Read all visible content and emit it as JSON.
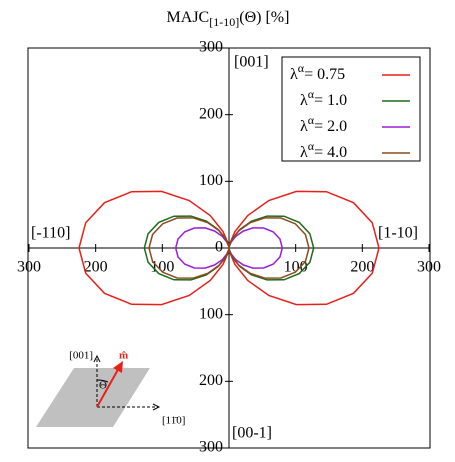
{
  "chart_data": {
    "type": "polar",
    "title": "MAJC",
    "title_subscript": "[1-10]",
    "title_suffix": "(Θ) [%]",
    "direction_labels": {
      "top": "[001]",
      "right": "[1-10]",
      "left": "[-110]",
      "bottom": "[00-1]"
    },
    "rlim": [
      0,
      300
    ],
    "rticks": [
      0,
      100,
      200,
      300
    ],
    "theta": [
      0,
      10,
      20,
      30,
      40,
      50,
      60,
      70,
      80,
      90,
      100,
      110,
      120,
      130,
      140,
      150,
      160,
      170,
      180,
      190,
      200,
      210,
      220,
      230,
      240,
      250,
      260,
      270,
      280,
      290,
      300,
      310,
      320,
      330,
      340,
      350,
      360
    ],
    "legend_label": {
      "base": "λ",
      "sup": "α",
      "sep": "= "
    },
    "legend_position": "upper right",
    "series": [
      {
        "name": "0.75",
        "color": "#e8201a",
        "values": [
          0,
          6.8,
          26.3,
          56.3,
          93.0,
          132.0,
          168.8,
          198.7,
          218.2,
          225,
          218.2,
          198.7,
          168.8,
          132.0,
          93.0,
          56.3,
          26.3,
          6.8,
          0,
          6.8,
          26.3,
          56.3,
          93.0,
          132.0,
          168.8,
          198.7,
          218.2,
          225,
          218.2,
          198.7,
          168.8,
          132.0,
          93.0,
          56.3,
          26.3,
          6.8,
          0
        ]
      },
      {
        "name": "1.0",
        "color": "#1d6b1d",
        "values": [
          0,
          3.8,
          14.9,
          31.8,
          52.5,
          74.5,
          95.3,
          112.1,
          123.2,
          127,
          123.2,
          112.1,
          95.3,
          74.5,
          52.5,
          31.8,
          14.9,
          3.8,
          0,
          3.8,
          14.9,
          31.8,
          52.5,
          74.5,
          95.3,
          112.1,
          123.2,
          127,
          123.2,
          112.1,
          95.3,
          74.5,
          52.5,
          31.8,
          14.9,
          3.8,
          0
        ]
      },
      {
        "name": "2.0",
        "color": "#9a1fd6",
        "values": [
          0,
          2.4,
          9.4,
          20,
          33.1,
          46.9,
          60,
          70.6,
          77.6,
          80,
          77.6,
          70.6,
          60,
          46.9,
          33.1,
          20,
          9.4,
          2.4,
          0,
          2.4,
          9.4,
          20,
          33.1,
          46.9,
          60,
          70.6,
          77.6,
          80,
          77.6,
          70.6,
          60,
          46.9,
          33.1,
          20,
          9.4,
          2.4,
          0
        ]
      },
      {
        "name": "4.0",
        "color": "#8b4a1c",
        "values": [
          0,
          3.6,
          14.0,
          30,
          49.6,
          70.4,
          90,
          106.0,
          116.4,
          120,
          116.4,
          106.0,
          90,
          70.4,
          49.6,
          30,
          14.0,
          3.6,
          0,
          3.6,
          14.0,
          30,
          49.6,
          70.4,
          90,
          106.0,
          116.4,
          120,
          116.4,
          106.0,
          90,
          70.4,
          49.6,
          30,
          14.0,
          3.6,
          0
        ]
      }
    ]
  },
  "inset": {
    "axis_up": "[001]",
    "axis_right": "[11̄0]",
    "vector": "m̂",
    "angle": "Θ"
  }
}
